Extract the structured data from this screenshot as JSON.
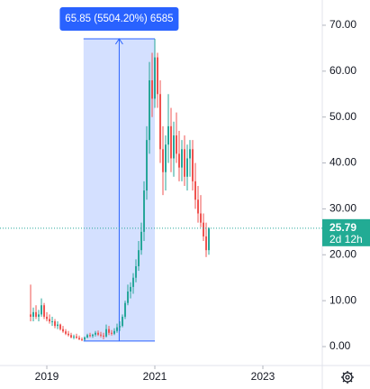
{
  "chart_data": {
    "type": "candlestick",
    "up_color": "#26a69a",
    "down_color": "#ef5350",
    "xlim": [
      2018.133,
      2024.1
    ],
    "ylim": [
      -4.13,
      75.5
    ],
    "xticks": [
      2019,
      2021,
      2023
    ],
    "yticks": [
      {
        "value": 0,
        "label": "0.00"
      },
      {
        "value": 10,
        "label": "10.00"
      },
      {
        "value": 20,
        "label": "20.00"
      },
      {
        "value": 30,
        "label": "30.00"
      },
      {
        "value": 40,
        "label": "40.00"
      },
      {
        "value": 50,
        "label": "50.00"
      },
      {
        "value": 60,
        "label": "60.00"
      },
      {
        "value": 70,
        "label": "70.00"
      }
    ],
    "x": [
      2018.7,
      2018.75,
      2018.8,
      2018.85,
      2018.9,
      2018.95,
      2019.0,
      2019.05,
      2019.1,
      2019.15,
      2019.2,
      2019.25,
      2019.3,
      2019.35,
      2019.4,
      2019.45,
      2019.5,
      2019.55,
      2019.6,
      2019.65,
      2019.7,
      2019.75,
      2019.8,
      2019.85,
      2019.9,
      2019.95,
      2020.0,
      2020.05,
      2020.1,
      2020.15,
      2020.2,
      2020.25,
      2020.3,
      2020.35,
      2020.4,
      2020.45,
      2020.5,
      2020.55,
      2020.6,
      2020.65,
      2020.7,
      2020.75,
      2020.8,
      2020.85,
      2020.9,
      2020.95,
      2021.0,
      2021.05,
      2021.1,
      2021.15,
      2021.2,
      2021.25,
      2021.3,
      2021.35,
      2021.4,
      2021.45,
      2021.5,
      2021.55,
      2021.6,
      2021.65,
      2021.7,
      2021.75,
      2021.8,
      2021.85,
      2021.9,
      2021.95,
      2022.0
    ],
    "open": [
      7,
      6.5,
      7.5,
      6.5,
      7,
      9,
      6.5,
      6,
      5.5,
      5.5,
      4.5,
      4.8,
      3.8,
      3.3,
      2.8,
      2.5,
      2,
      2.2,
      1.9,
      1.6,
      1.5,
      2,
      2.5,
      2.3,
      2.6,
      3,
      2.6,
      2.4,
      2.2,
      3.8,
      3,
      2.8,
      3.4,
      4.2,
      4.5,
      6.5,
      9.5,
      12,
      13,
      15,
      17.5,
      21,
      25,
      34,
      45,
      58,
      54,
      63,
      55,
      43,
      38,
      44,
      48,
      41,
      46,
      42,
      39,
      43,
      37,
      41,
      43,
      36,
      32,
      29,
      27,
      24,
      21
    ],
    "high": [
      13.5,
      8.5,
      9,
      8,
      10.5,
      9.5,
      7.5,
      7,
      6.5,
      6,
      5.5,
      5,
      4.5,
      3.8,
      3.4,
      3,
      2.6,
      2.8,
      2.4,
      2,
      2.2,
      2.8,
      3,
      2.8,
      3.4,
      3.5,
      3.2,
      3,
      4.8,
      4.5,
      3.6,
      4,
      5,
      5.5,
      7,
      10,
      13.5,
      14,
      16,
      19,
      23,
      27,
      36,
      48,
      62,
      64,
      67.05,
      64,
      58,
      48,
      46,
      55,
      52,
      49,
      51,
      47,
      45,
      46,
      44,
      45,
      45,
      40,
      35,
      33,
      29,
      27,
      26
    ],
    "low": [
      5.5,
      5.5,
      6,
      5.5,
      6.5,
      6,
      5.5,
      5,
      4.5,
      4,
      3.8,
      3.5,
      3,
      2.5,
      2.2,
      1.8,
      1.6,
      1.7,
      1.4,
      1.196,
      1.3,
      1.8,
      2,
      1.9,
      2.2,
      2.3,
      2,
      1.6,
      2,
      2.5,
      2.4,
      2.5,
      3,
      3.4,
      4.2,
      6,
      9,
      10.5,
      11.5,
      14,
      16.5,
      20,
      23,
      32,
      42,
      50,
      52,
      52,
      40,
      33,
      34,
      40,
      38,
      37,
      40,
      36,
      36,
      35,
      34,
      37,
      34,
      30,
      27,
      26,
      23,
      19.5,
      20
    ],
    "close": [
      6.5,
      7.5,
      6.5,
      7,
      9,
      6.5,
      6,
      5.5,
      5.5,
      4.5,
      4.8,
      3.8,
      3.3,
      2.8,
      2.5,
      2,
      2.2,
      1.9,
      1.6,
      1.5,
      2,
      2.5,
      2.3,
      2.6,
      3,
      2.6,
      2.4,
      2.2,
      3.8,
      3,
      2.8,
      3.4,
      4.2,
      4.5,
      6.5,
      9.5,
      12,
      13,
      15,
      17.5,
      21,
      25,
      34,
      45,
      58,
      54,
      63,
      55,
      43,
      38,
      44,
      48,
      41,
      46,
      42,
      39,
      43,
      37,
      41,
      43,
      36,
      32,
      29,
      27,
      24,
      21,
      25.79
    ],
    "countdown": "2d 12h",
    "measure": {
      "label": "65.85 (5504.20%) 6585",
      "x": [
        2019.68,
        2021.0
      ],
      "y": [
        1.196,
        67.05
      ]
    }
  }
}
